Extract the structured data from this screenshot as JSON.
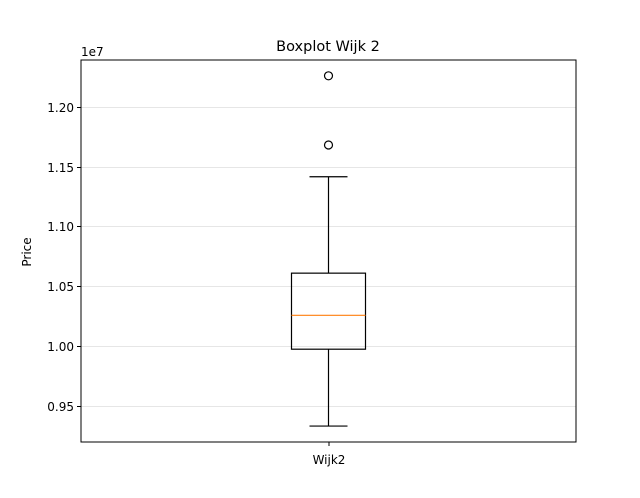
{
  "chart_data": {
    "type": "box",
    "title": "Boxplot Wijk 2",
    "xlabel": "",
    "ylabel": "Price",
    "offset_label": "1e7",
    "categories": [
      "Wijk2"
    ],
    "boxes": [
      {
        "name": "Wijk2",
        "whisker_low": 9333000,
        "q1": 9975000,
        "median": 10258000,
        "q3": 10610000,
        "whisker_high": 11415000,
        "outliers": [
          11680000,
          12258000
        ]
      }
    ],
    "ylim": [
      9200000,
      12390000
    ],
    "yticks": [
      9500000,
      10000000,
      10500000,
      11000000,
      11500000,
      12000000
    ],
    "ytick_labels": [
      "0.95",
      "1.00",
      "1.05",
      "1.10",
      "1.15",
      "1.20"
    ],
    "grid": "y-axis",
    "colors": {
      "box": "#000000",
      "median": "#ff7f0e",
      "grid": "#e6e6e6"
    }
  }
}
